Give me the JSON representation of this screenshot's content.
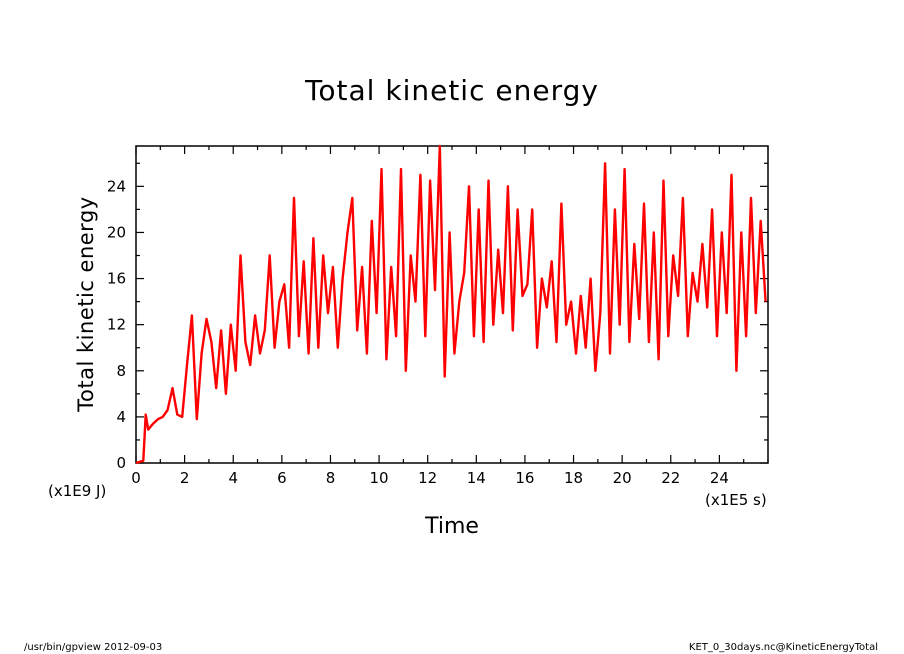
{
  "chart_data": {
    "type": "line",
    "title": "Total kinetic energy",
    "xlabel": "Time",
    "ylabel": "Total kinetic energy",
    "x_unit": "(x1E5 s)",
    "y_unit": "(x1E9 J)",
    "xlim": [
      0,
      26
    ],
    "ylim": [
      0,
      27.5
    ],
    "x_ticks": [
      0,
      2,
      4,
      6,
      8,
      10,
      12,
      14,
      16,
      18,
      20,
      22,
      24
    ],
    "y_ticks": [
      0,
      4,
      8,
      12,
      16,
      20,
      24
    ],
    "grid": false,
    "series_color": "#ff0000",
    "series": [
      {
        "x": [
          0,
          0.3,
          0.4,
          0.5,
          0.7,
          0.9,
          1.1,
          1.3,
          1.5,
          1.7,
          1.9,
          2.1,
          2.3,
          2.5,
          2.7,
          2.9,
          3.1,
          3.3,
          3.5,
          3.7,
          3.9,
          4.1,
          4.3,
          4.5,
          4.7,
          4.9,
          5.1,
          5.3,
          5.5,
          5.7,
          5.9,
          6.1,
          6.3,
          6.5,
          6.7,
          6.9,
          7.1,
          7.3,
          7.5,
          7.7,
          7.9,
          8.1,
          8.3,
          8.5,
          8.7,
          8.9,
          9.1,
          9.3,
          9.5,
          9.7,
          9.9,
          10.1,
          10.3,
          10.5,
          10.7,
          10.9,
          11.1,
          11.3,
          11.5,
          11.7,
          11.9,
          12.1,
          12.3,
          12.5,
          12.7,
          12.9,
          13.1,
          13.3,
          13.5,
          13.7,
          13.9,
          14.1,
          14.3,
          14.5,
          14.7,
          14.9,
          15.1,
          15.3,
          15.5,
          15.7,
          15.9,
          16.1,
          16.3,
          16.5,
          16.7,
          16.9,
          17.1,
          17.3,
          17.5,
          17.7,
          17.9,
          18.1,
          18.3,
          18.5,
          18.7,
          18.9,
          19.1,
          19.3,
          19.5,
          19.7,
          19.9,
          20.1,
          20.3,
          20.5,
          20.7,
          20.9,
          21.1,
          21.3,
          21.5,
          21.7,
          21.9,
          22.1,
          22.3,
          22.5,
          22.7,
          22.9,
          23.1,
          23.3,
          23.5,
          23.7,
          23.9,
          24.1,
          24.3,
          24.5,
          24.7,
          24.9,
          25.1,
          25.3,
          25.5,
          25.7,
          25.9
        ],
        "y": [
          0,
          0.2,
          4.2,
          2.9,
          3.4,
          3.8,
          4.0,
          4.6,
          6.5,
          4.2,
          4.0,
          8.5,
          12.8,
          3.8,
          9.5,
          12.5,
          10.5,
          6.5,
          11.5,
          6.0,
          12.0,
          8.0,
          18.0,
          10.5,
          8.5,
          12.8,
          9.5,
          11.5,
          18.0,
          10.0,
          14.0,
          15.5,
          10.0,
          23.0,
          11.0,
          17.5,
          9.5,
          19.5,
          10.0,
          18.0,
          13.0,
          17.0,
          10.0,
          16.0,
          20.0,
          23.0,
          11.5,
          17.0,
          9.5,
          21.0,
          13.0,
          25.5,
          9.0,
          17.0,
          11.0,
          25.5,
          8.0,
          18.0,
          14.0,
          25.0,
          11.0,
          24.5,
          15.0,
          27.5,
          7.5,
          20.0,
          9.5,
          14.0,
          16.5,
          24.0,
          11.0,
          22.0,
          10.5,
          24.5,
          12.0,
          18.5,
          13.0,
          24.0,
          11.5,
          22.0,
          14.5,
          15.5,
          22.0,
          10.0,
          16.0,
          13.5,
          17.5,
          10.5,
          22.5,
          12.0,
          14.0,
          9.5,
          14.5,
          10.0,
          16.0,
          8.0,
          13.0,
          26.0,
          9.5,
          22.0,
          12.0,
          25.5,
          10.5,
          19.0,
          12.5,
          22.5,
          10.5,
          20.0,
          9.0,
          24.5,
          11.0,
          18.0,
          14.5,
          23.0,
          11.0,
          16.5,
          14.0,
          19.0,
          13.5,
          22.0,
          11.0,
          20.0,
          13.0,
          25.0,
          8.0,
          20.0,
          11.0,
          23.0,
          13.0,
          21.0,
          14.0
        ]
      }
    ]
  },
  "footer": {
    "left": "/usr/bin/gpview   2012-09-03",
    "right": "KET_0_30days.nc@KineticEnergyTotal"
  }
}
